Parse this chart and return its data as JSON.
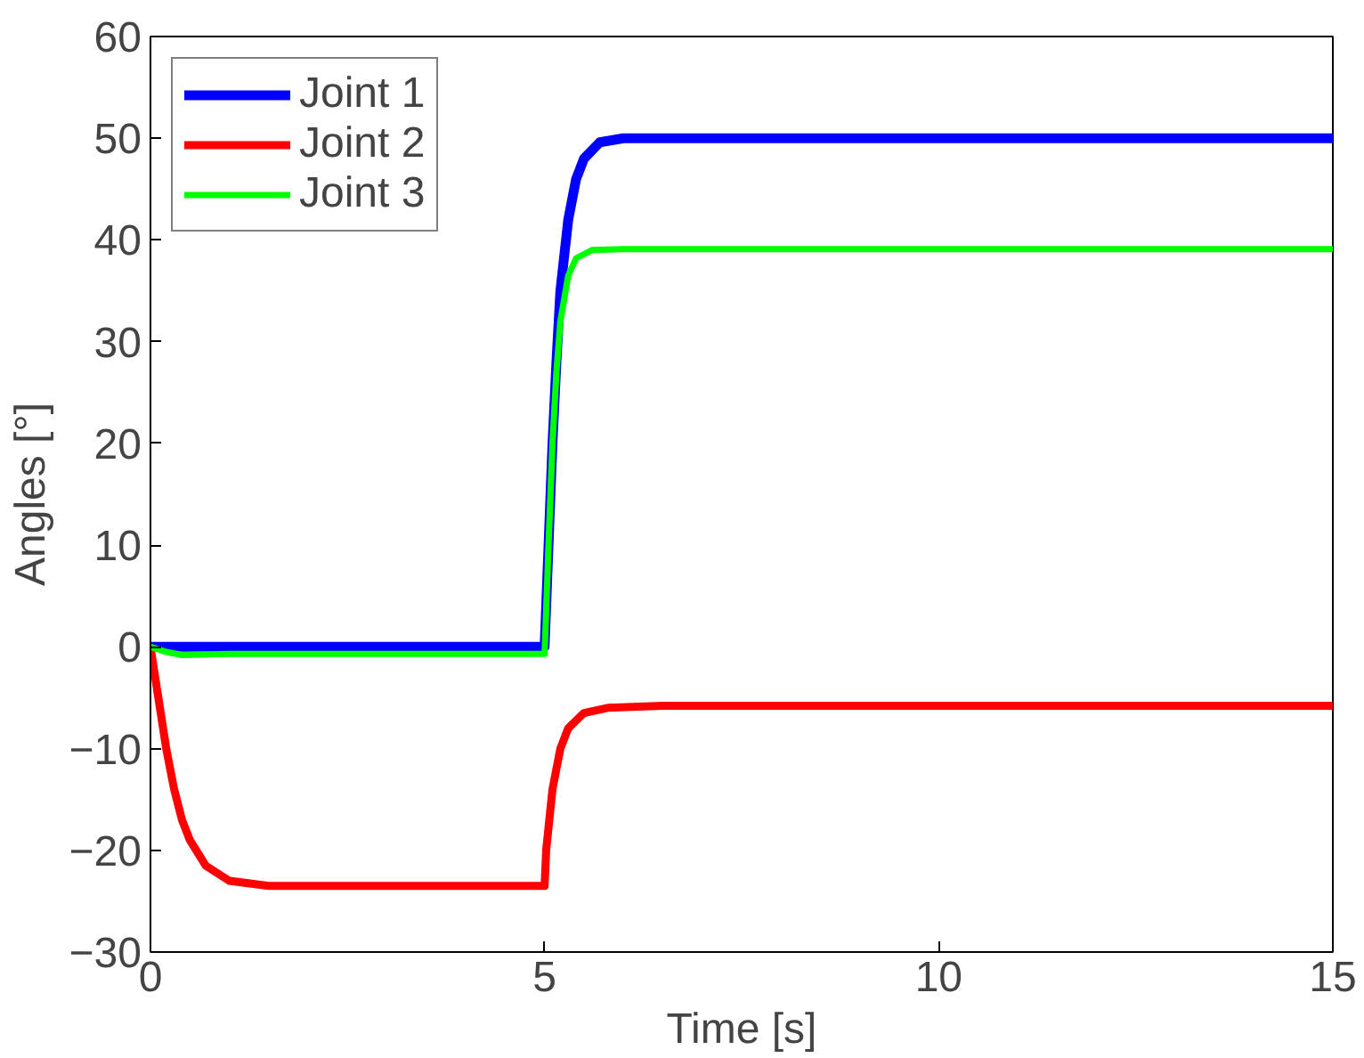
{
  "chart_data": {
    "type": "line",
    "xlabel": "Time [s]",
    "ylabel": "Angles [°]",
    "xlim": [
      0,
      15
    ],
    "ylim": [
      -30,
      60
    ],
    "xticks": [
      0,
      5,
      10,
      15
    ],
    "yticks": [
      -30,
      -20,
      -10,
      0,
      10,
      20,
      30,
      40,
      50,
      60
    ],
    "grid": false,
    "legend": "top left",
    "line_style": "solid",
    "marker": "none",
    "series": [
      {
        "name": "Joint 1",
        "color": "#0000ff",
        "x": [
          0,
          5,
          5.05,
          5.1,
          5.15,
          5.2,
          5.3,
          5.4,
          5.5,
          5.7,
          6,
          15
        ],
        "values": [
          0,
          0,
          10,
          20,
          28,
          35,
          42,
          46,
          48,
          49.6,
          50,
          50
        ]
      },
      {
        "name": "Joint 2",
        "color": "#ff0000",
        "x": [
          0,
          0.1,
          0.2,
          0.3,
          0.4,
          0.5,
          0.7,
          1,
          1.5,
          5,
          5.02,
          5.1,
          5.2,
          5.3,
          5.5,
          5.8,
          6.5,
          15
        ],
        "values": [
          0,
          -5,
          -10,
          -14,
          -17,
          -19,
          -21.5,
          -23,
          -23.5,
          -23.5,
          -20,
          -14,
          -10,
          -8,
          -6.5,
          -6,
          -5.8,
          -5.8
        ]
      },
      {
        "name": "Joint 3",
        "color": "#00ff00",
        "x": [
          0,
          0.2,
          0.4,
          1,
          5,
          5.05,
          5.1,
          5.15,
          5.2,
          5.3,
          5.4,
          5.6,
          6,
          15
        ],
        "values": [
          0,
          -0.5,
          -0.8,
          -0.7,
          -0.7,
          10,
          20,
          27,
          32,
          36.5,
          38.2,
          39,
          39.1,
          39.1
        ]
      }
    ]
  }
}
